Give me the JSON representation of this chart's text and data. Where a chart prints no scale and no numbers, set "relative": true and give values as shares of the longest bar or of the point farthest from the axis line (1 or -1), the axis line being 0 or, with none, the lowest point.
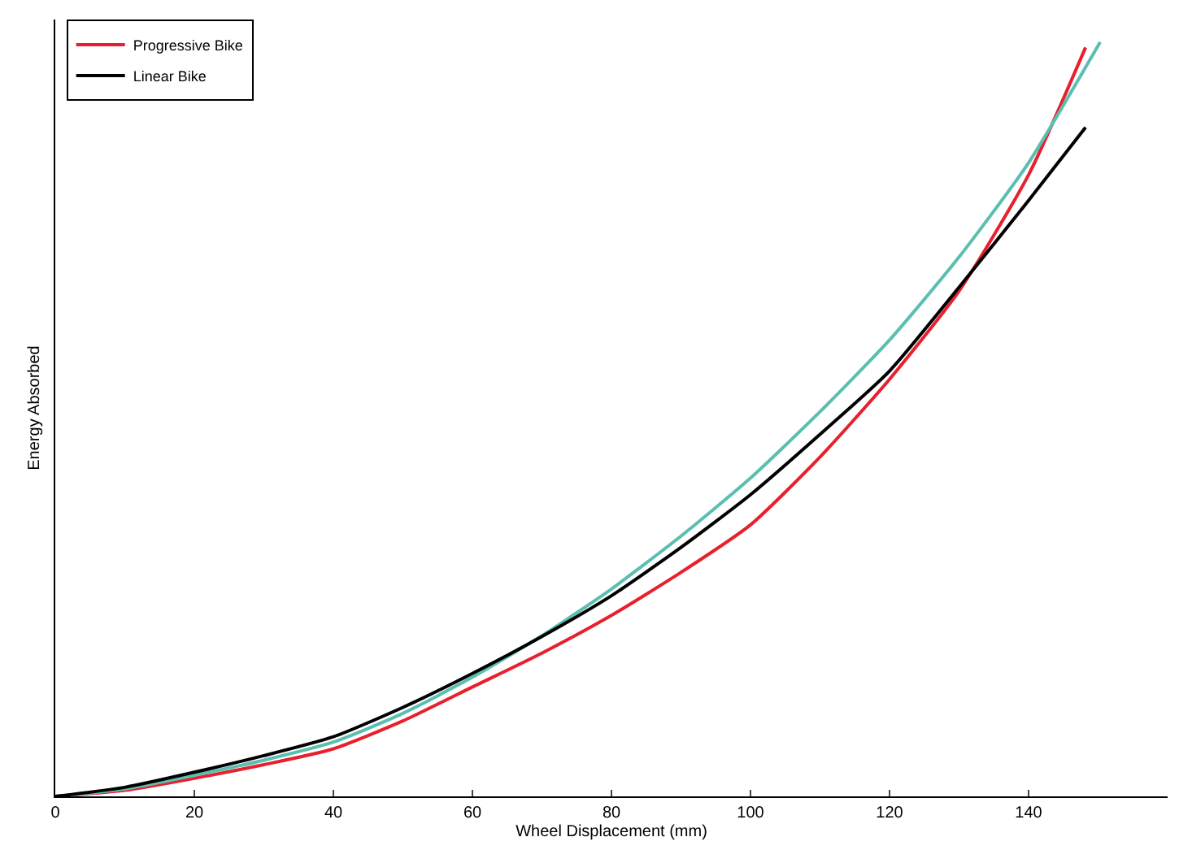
{
  "chart_data": {
    "type": "line",
    "xlabel": "Wheel Displacement (mm)",
    "ylabel": "Energy Absorbed",
    "relative": true,
    "xlim": [
      0,
      160
    ],
    "xticks": [
      0,
      20,
      40,
      60,
      80,
      100,
      120,
      140
    ],
    "grid": false,
    "legend": "top left",
    "marker": "none",
    "line_style": "solid",
    "series": [
      {
        "name": "Progressive Bike",
        "color": "#e8202e",
        "x": [
          0,
          10,
          20,
          30,
          40,
          50,
          60,
          70,
          80,
          90,
          100,
          110,
          120,
          130,
          140,
          148.2
        ],
        "values": [
          0,
          0.008,
          0.024,
          0.042,
          0.063,
          0.1,
          0.145,
          0.19,
          0.24,
          0.297,
          0.36,
          0.45,
          0.553,
          0.67,
          0.824,
          0.993
        ]
      },
      {
        "color": "#5bbfb0",
        "x": [
          0,
          10,
          20,
          30,
          40,
          50,
          60,
          70,
          80,
          90,
          100,
          110,
          120,
          130,
          140,
          150.3
        ],
        "values": [
          0,
          0.01,
          0.028,
          0.048,
          0.072,
          0.11,
          0.158,
          0.213,
          0.275,
          0.345,
          0.422,
          0.51,
          0.605,
          0.715,
          0.84,
          1
        ]
      },
      {
        "name": "Linear Bike",
        "color": "#000000",
        "x": [
          0,
          10,
          20,
          30,
          40,
          50,
          60,
          70,
          80,
          90,
          100,
          110,
          120,
          130,
          140,
          148.2
        ],
        "values": [
          0,
          0.012,
          0.032,
          0.054,
          0.079,
          0.118,
          0.163,
          0.212,
          0.266,
          0.33,
          0.4,
          0.48,
          0.564,
          0.675,
          0.79,
          0.887
        ]
      }
    ]
  }
}
